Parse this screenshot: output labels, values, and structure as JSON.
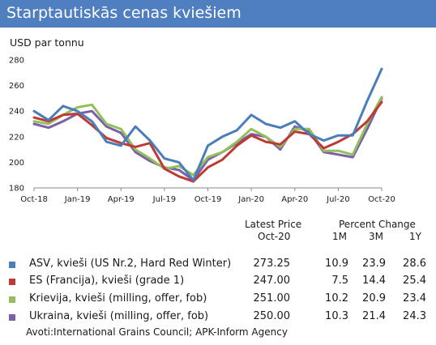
{
  "header": {
    "title": "Starptautiskās cenas kviešiem",
    "unit_label": "USD par tonnu"
  },
  "chart_data": {
    "type": "line",
    "x": [
      "Oct-18",
      "Nov-18",
      "Dec-18",
      "Jan-19",
      "Feb-19",
      "Mar-19",
      "Apr-19",
      "May-19",
      "Jun-19",
      "Jul-19",
      "Aug-19",
      "Sep-19",
      "Oct-19",
      "Nov-19",
      "Dec-19",
      "Jan-20",
      "Feb-20",
      "Mar-20",
      "Apr-20",
      "May-20",
      "Jun-20",
      "Jul-20",
      "Aug-20",
      "Sep-20",
      "Oct-20"
    ],
    "x_tick_labels": [
      "Oct-18",
      "Jan-19",
      "Apr-19",
      "Jul-19",
      "Oct-19",
      "Jan-20",
      "Apr-20",
      "Jul-20",
      "Oct-20"
    ],
    "y_ticks": [
      180,
      200,
      220,
      240,
      260,
      280
    ],
    "ylim": [
      180,
      280
    ],
    "grid": false,
    "series": [
      {
        "name": "ASV, kvieši (US Nr.2, Hard Red Winter)",
        "color": "#4a7ebb",
        "values": [
          240,
          233,
          244,
          240,
          232,
          216,
          213,
          228,
          217,
          203,
          200,
          186,
          213,
          220,
          225,
          237,
          230,
          227,
          232,
          222,
          217,
          221,
          221,
          248,
          273
        ]
      },
      {
        "name": "ES (Francija), kvieši (grade 1)",
        "color": "#be3a34",
        "values": [
          235,
          232,
          237,
          238,
          229,
          219,
          215,
          212,
          215,
          195,
          189,
          185,
          196,
          202,
          213,
          221,
          216,
          214,
          224,
          222,
          211,
          216,
          222,
          232,
          247
        ]
      },
      {
        "name": "Krievija, kvieši (milling, offer, fob)",
        "color": "#93c05a",
        "values": [
          232,
          230,
          237,
          243,
          245,
          230,
          226,
          210,
          203,
          195,
          197,
          190,
          204,
          208,
          216,
          226,
          220,
          212,
          226,
          226,
          209,
          209,
          206,
          230,
          251
        ]
      },
      {
        "name": "Ukraina, kvieši (milling, offer, fob)",
        "color": "#7d5fa8",
        "values": [
          230,
          227,
          232,
          238,
          240,
          228,
          223,
          208,
          201,
          196,
          194,
          186,
          202,
          208,
          215,
          222,
          220,
          210,
          228,
          224,
          208,
          206,
          204,
          226,
          250
        ]
      }
    ]
  },
  "table": {
    "headers": {
      "latest_price": "Latest Price",
      "latest_price_date": "Oct-20",
      "percent_change": "Percent Change",
      "m1": "1M",
      "m3": "3M",
      "y1": "1Y"
    },
    "rows": [
      {
        "name": "ASV, kvieši (US Nr.2, Hard Red Winter)",
        "price": "273.25",
        "m1": "10.9",
        "m3": "23.9",
        "y1": "28.6",
        "color": "#4a7ebb"
      },
      {
        "name": "ES (Francija), kvieši (grade 1)",
        "price": "247.00",
        "m1": "7.5",
        "m3": "14.4",
        "y1": "25.4",
        "color": "#be3a34"
      },
      {
        "name": "Krievija, kvieši (milling, offer, fob)",
        "price": "251.00",
        "m1": "10.2",
        "m3": "20.9",
        "y1": "23.4",
        "color": "#93c05a"
      },
      {
        "name": "Ukraina, kvieši (milling, offer, fob)",
        "price": "250.00",
        "m1": "10.3",
        "m3": "21.4",
        "y1": "24.3",
        "color": "#7d5fa8"
      }
    ]
  },
  "footer": {
    "source": "Avoti:International Grains Council; APK-Inform Agency"
  }
}
